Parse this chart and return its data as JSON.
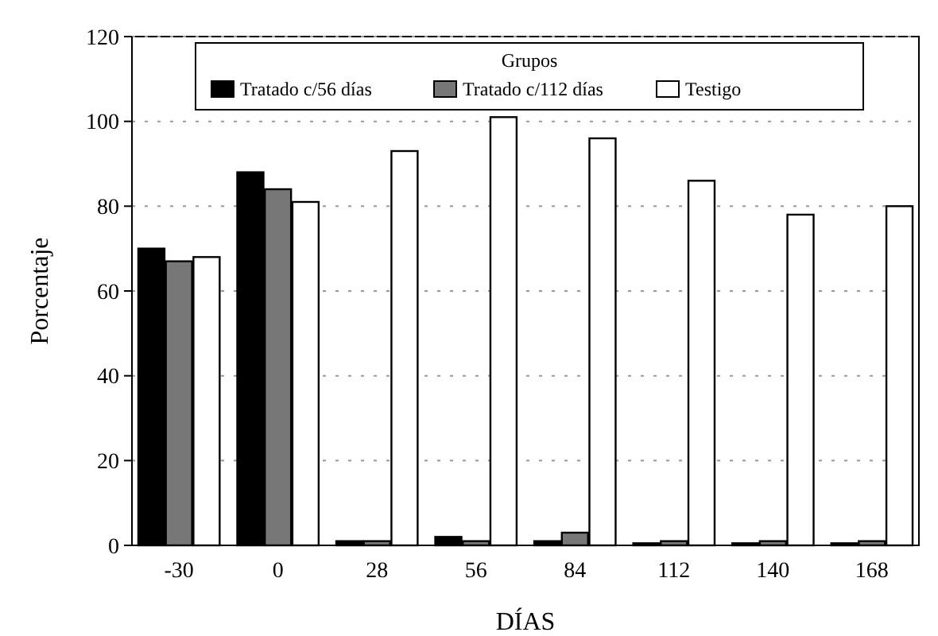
{
  "chart_data": {
    "type": "bar",
    "xlabel": "DÍAS",
    "ylabel": "Porcentaje",
    "legend_title": "Grupos",
    "legend": "top",
    "grid": "y",
    "categories": [
      "-30",
      "0",
      "28",
      "56",
      "84",
      "112",
      "140",
      "168"
    ],
    "series": [
      {
        "name": "Tratado c/56 días",
        "color": "#000000",
        "values": [
          70,
          88,
          1,
          2,
          1,
          0.5,
          0.5,
          0.5
        ]
      },
      {
        "name": "Tratado c/112 días",
        "color": "#777777",
        "values": [
          67,
          84,
          1,
          1,
          3,
          1,
          1,
          1
        ]
      },
      {
        "name": "Testigo",
        "color": "#ffffff",
        "values": [
          68,
          81,
          93,
          101,
          96,
          86,
          78,
          80
        ]
      }
    ],
    "ylim": [
      0,
      120
    ],
    "yticks": [
      0,
      20,
      40,
      60,
      80,
      100,
      120
    ]
  }
}
